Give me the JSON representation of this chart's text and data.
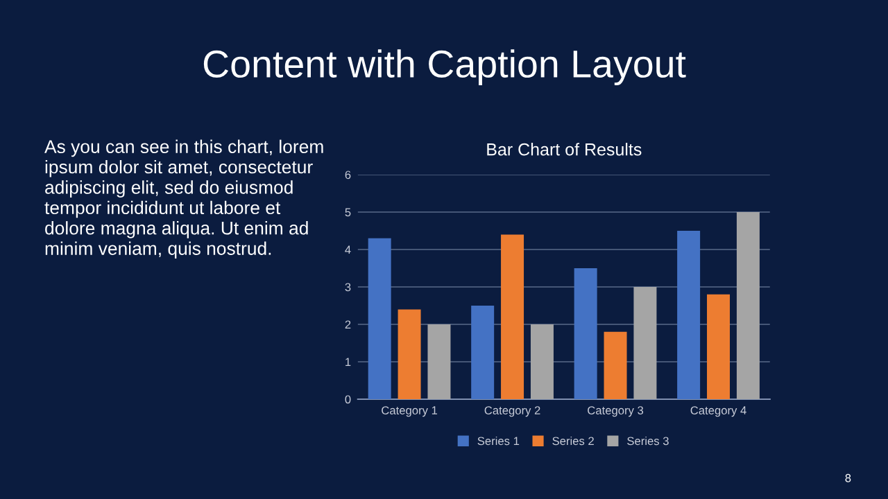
{
  "chart_data": {
    "type": "bar",
    "title": "Bar Chart of Results",
    "categories": [
      "Category 1",
      "Category 2",
      "Category 3",
      "Category 4"
    ],
    "series": [
      {
        "name": "Series 1",
        "color": "#4472c4",
        "values": [
          4.3,
          2.5,
          3.5,
          4.5
        ]
      },
      {
        "name": "Series 2",
        "color": "#ed7d31",
        "values": [
          2.4,
          4.4,
          1.8,
          2.8
        ]
      },
      {
        "name": "Series 3",
        "color": "#a5a5a5",
        "values": [
          2,
          2,
          3,
          5
        ]
      }
    ],
    "ylim": [
      0,
      6
    ],
    "yticks": [
      0,
      1,
      2,
      3,
      4,
      5,
      6
    ],
    "grid": "y",
    "legend": "bottom",
    "annotations": [
      "Content with Caption Layout",
      "As you can see in this chart, lorem\nipsum dolor sit amet, consectetur\nadipiscing elit, sed do eiusmod\ntempor incididunt ut labore et\ndolore magna aliqua. Ut enim ad\nminim veniam, quis nostrud.",
      "8"
    ]
  }
}
